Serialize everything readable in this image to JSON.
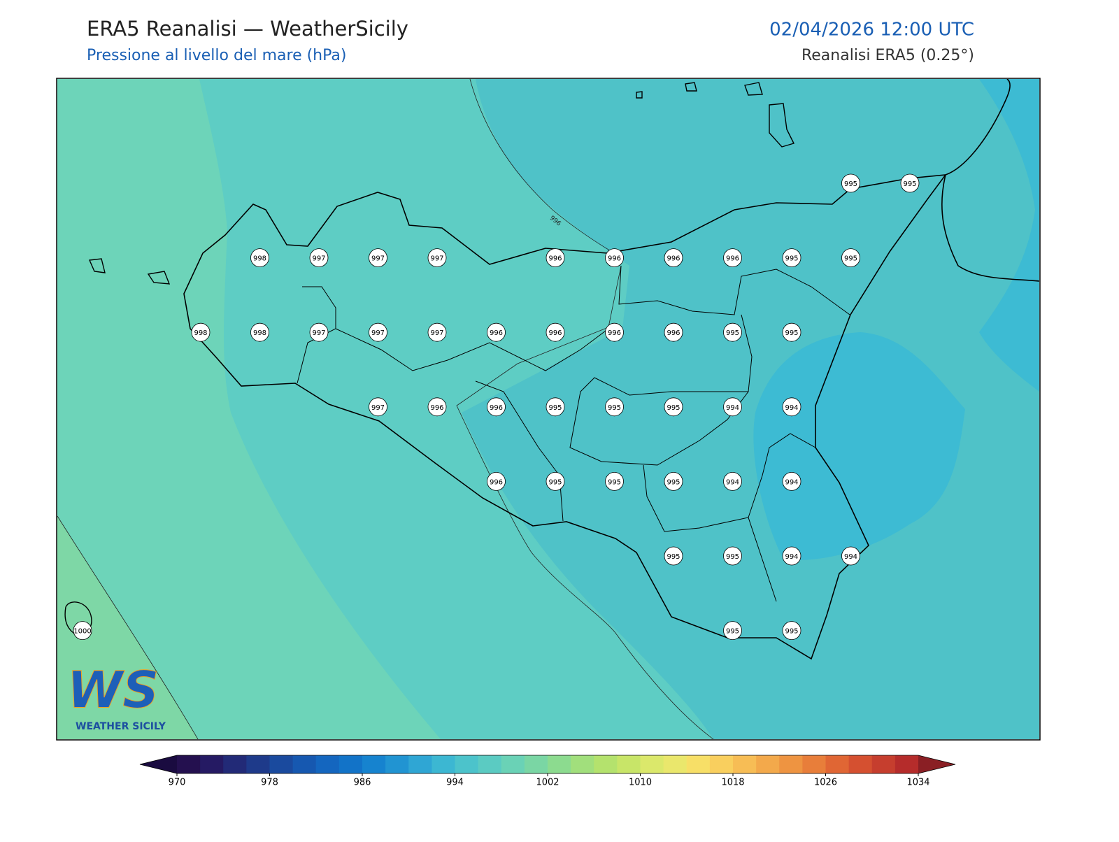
{
  "header": {
    "title": "ERA5 Reanalisi — WeatherSicily",
    "subtitle": "Pressione al livello del mare (hPa)",
    "datetime": "02/04/2026 12:00 UTC",
    "source": "Reanalisi ERA5 (0.25°)"
  },
  "map": {
    "contour_labels": [
      "996"
    ],
    "stations": [
      [
        null,
        null,
        null,
        null,
        null,
        null,
        null,
        null,
        null,
        null,
        null,
        null,
        null,
        995,
        995
      ],
      [
        null,
        null,
        null,
        998,
        997,
        997,
        997,
        null,
        996,
        996,
        996,
        996,
        995,
        995,
        null
      ],
      [
        null,
        null,
        998,
        998,
        997,
        997,
        997,
        996,
        996,
        996,
        996,
        995,
        995,
        null,
        null
      ],
      [
        null,
        null,
        null,
        null,
        null,
        997,
        996,
        996,
        995,
        995,
        995,
        994,
        994,
        null,
        null
      ],
      [
        null,
        null,
        null,
        null,
        null,
        null,
        null,
        996,
        995,
        995,
        995,
        994,
        994,
        null,
        null
      ],
      [
        null,
        null,
        null,
        null,
        null,
        null,
        null,
        null,
        null,
        null,
        995,
        995,
        994,
        994,
        null
      ],
      [
        1000,
        null,
        null,
        null,
        null,
        null,
        null,
        null,
        null,
        null,
        null,
        995,
        995,
        null,
        null
      ]
    ]
  },
  "colorbar": {
    "lim": [
      970,
      1034
    ],
    "ticks": [
      970,
      978,
      986,
      994,
      1002,
      1010,
      1018,
      1026,
      1034
    ],
    "colors": [
      "#24104f",
      "#251a63",
      "#222a77",
      "#1e3a8a",
      "#1a4a9e",
      "#1658b0",
      "#1466bf",
      "#1273c8",
      "#1683cf",
      "#2194d2",
      "#2fa6d4",
      "#3cb7d2",
      "#4cc3cb",
      "#5bcbc2",
      "#6ad2b6",
      "#7ad6a4",
      "#8cdb8f",
      "#a1df7c",
      "#b4e26d",
      "#c8e568",
      "#dbe86b",
      "#eae76c",
      "#f7df67",
      "#f9cf5e",
      "#f7bd55",
      "#f3a94b",
      "#ee9441",
      "#e87e3a",
      "#e06634",
      "#d55030",
      "#c63e2e",
      "#b52c2b"
    ],
    "under": "#1a0b40",
    "over": "#8a1f24"
  },
  "logo": {
    "letters": "WS",
    "name": "WEATHER SICILY"
  }
}
